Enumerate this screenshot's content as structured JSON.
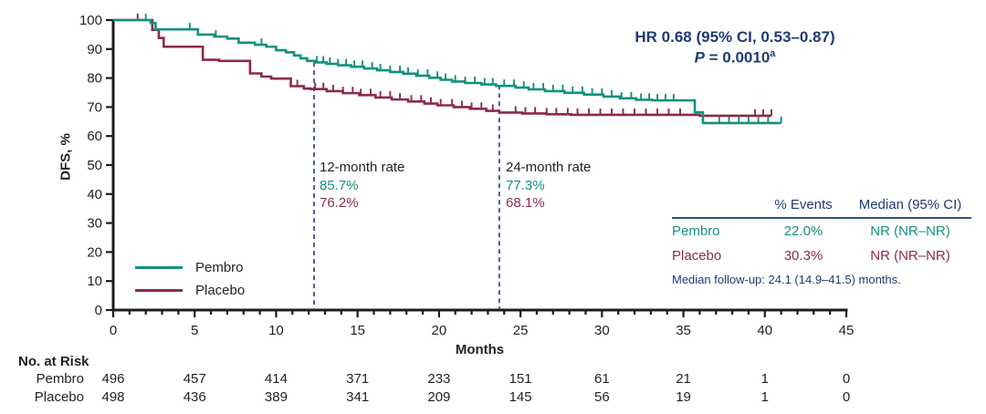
{
  "theme": {
    "navy": "#203a73",
    "ink": "#231f20",
    "axis": "#1c1c1c",
    "rule": "#33527e",
    "background": "#ffffff"
  },
  "annotation": {
    "hr_line": "HR 0.68 (95% CI, 0.53–0.87)",
    "p_italic": "P",
    "p_rest": " = 0.0010",
    "p_sup": "a"
  },
  "rate_callouts": [
    {
      "title": "12-month rate",
      "pembro": "85.7%",
      "placebo": "76.2%"
    },
    {
      "title": "24-month rate",
      "pembro": "77.3%",
      "placebo": "68.1%"
    }
  ],
  "legend": {
    "items": [
      {
        "label": "Pembro"
      },
      {
        "label": "Placebo"
      }
    ]
  },
  "stats_table": {
    "col_events": "% Events",
    "col_median": "Median (95% CI)",
    "rows": [
      {
        "label": "Pembro",
        "events": "22.0%",
        "median": "NR (NR–NR)"
      },
      {
        "label": "Placebo",
        "events": "30.3%",
        "median": "NR (NR–NR)"
      }
    ],
    "footnote": "Median follow-up: 24.1 (14.9–41.5) months."
  },
  "no_at_risk": {
    "title": "No. at Risk",
    "rows": [
      {
        "label": "Pembro",
        "values": [
          496,
          457,
          414,
          371,
          233,
          151,
          61,
          21,
          1,
          0
        ]
      },
      {
        "label": "Placebo",
        "values": [
          498,
          436,
          389,
          341,
          209,
          145,
          56,
          19,
          1,
          0
        ]
      }
    ]
  },
  "chart_data": {
    "type": "line",
    "subtype": "kaplan_meier_step",
    "title": "",
    "xlabel": "Months",
    "ylabel": "DFS, %",
    "xlim": [
      0,
      45
    ],
    "ylim": [
      0,
      100
    ],
    "x_ticks": [
      0,
      5,
      10,
      15,
      20,
      25,
      30,
      35,
      40,
      45
    ],
    "x_minor_step": 1,
    "y_ticks": [
      0,
      10,
      20,
      30,
      40,
      50,
      60,
      70,
      80,
      90,
      100
    ],
    "grid": false,
    "legend_position": "lower-left",
    "time_point_rates": [
      {
        "month": 12,
        "pembro": 85.7,
        "placebo": 76.2
      },
      {
        "month": 24,
        "pembro": 77.3,
        "placebo": 68.1
      }
    ],
    "reference_lines": [
      {
        "x": 12.33,
        "from": 85.5
      },
      {
        "x": 23.7,
        "from": 77.6
      }
    ],
    "series": [
      {
        "name": "Placebo",
        "color": "#8b2a4b",
        "end": 40.4,
        "steps": [
          [
            0,
            100
          ],
          [
            2.4,
            96.6
          ],
          [
            2.8,
            93.8
          ],
          [
            3.1,
            90.8
          ],
          [
            5.5,
            86.3
          ],
          [
            6.5,
            85.9
          ],
          [
            8.4,
            81.6
          ],
          [
            9.1,
            80.5
          ],
          [
            9.7,
            79.8
          ],
          [
            10.9,
            77.2
          ],
          [
            11.7,
            76.4
          ],
          [
            12.1,
            76.2
          ],
          [
            13.1,
            75.5
          ],
          [
            14.1,
            74.8
          ],
          [
            15.1,
            74.1
          ],
          [
            16.1,
            73.3
          ],
          [
            17.1,
            72.6
          ],
          [
            18.1,
            71.9
          ],
          [
            19.1,
            71.2
          ],
          [
            19.9,
            70.6
          ],
          [
            20.9,
            70.0
          ],
          [
            21.9,
            69.4
          ],
          [
            22.9,
            68.7
          ],
          [
            23.7,
            68.1
          ],
          [
            25.1,
            67.8
          ],
          [
            26.6,
            67.5
          ],
          [
            28.1,
            67.3
          ],
          [
            36.0,
            67.0
          ]
        ],
        "censors": [
          1.5,
          11.3,
          12.4,
          12.9,
          13.5,
          14.1,
          14.7,
          15.2,
          15.8,
          16.4,
          17.0,
          17.6,
          18.3,
          18.9,
          19.5,
          20.1,
          20.8,
          21.4,
          22.0,
          22.6,
          23.3,
          24.7,
          25.3,
          25.9,
          26.6,
          27.2,
          27.9,
          28.5,
          29.2,
          29.9,
          30.6,
          31.3,
          32.0,
          32.7,
          33.4,
          34.1,
          34.8,
          39.4,
          39.9,
          40.4
        ]
      },
      {
        "name": "Pembro",
        "color": "#13907f",
        "end": 41.0,
        "steps": [
          [
            0,
            100
          ],
          [
            2.3,
            99.0
          ],
          [
            2.6,
            96.8
          ],
          [
            5.2,
            95.0
          ],
          [
            6.2,
            94.3
          ],
          [
            7.0,
            93.6
          ],
          [
            7.7,
            92.2
          ],
          [
            8.7,
            91.5
          ],
          [
            9.4,
            90.8
          ],
          [
            10.0,
            89.6
          ],
          [
            10.6,
            88.9
          ],
          [
            11.1,
            87.8
          ],
          [
            11.5,
            86.8
          ],
          [
            11.9,
            85.9
          ],
          [
            12.4,
            85.4
          ],
          [
            13.1,
            84.9
          ],
          [
            13.8,
            84.4
          ],
          [
            14.6,
            83.9
          ],
          [
            15.4,
            83.3
          ],
          [
            16.2,
            82.7
          ],
          [
            17.0,
            82.1
          ],
          [
            17.8,
            81.5
          ],
          [
            18.6,
            80.8
          ],
          [
            19.4,
            80.1
          ],
          [
            20.1,
            79.4
          ],
          [
            20.8,
            78.8
          ],
          [
            21.6,
            78.3
          ],
          [
            22.6,
            77.8
          ],
          [
            23.5,
            77.3
          ],
          [
            24.7,
            76.7
          ],
          [
            25.5,
            76.1
          ],
          [
            26.5,
            75.5
          ],
          [
            27.7,
            74.9
          ],
          [
            28.9,
            74.3
          ],
          [
            30.1,
            73.6
          ],
          [
            31.1,
            73.0
          ],
          [
            32.1,
            72.5
          ],
          [
            33.1,
            72.3
          ],
          [
            35.7,
            68.2
          ],
          [
            36.2,
            64.5
          ]
        ],
        "censors": [
          2.0,
          4.7,
          6.3,
          9.1,
          12.5,
          12.9,
          13.3,
          13.8,
          14.3,
          14.8,
          15.3,
          15.9,
          16.4,
          17.0,
          17.6,
          18.1,
          18.7,
          19.3,
          19.9,
          20.4,
          21.0,
          21.6,
          22.2,
          22.8,
          23.3,
          24.0,
          24.6,
          25.2,
          25.8,
          26.4,
          27.0,
          27.6,
          28.2,
          28.8,
          29.4,
          30.0,
          30.6,
          31.2,
          31.8,
          32.4,
          32.9,
          33.4,
          33.9,
          34.4,
          37.2,
          37.8,
          38.4,
          39.0,
          39.6,
          40.2,
          41.0
        ]
      }
    ]
  }
}
